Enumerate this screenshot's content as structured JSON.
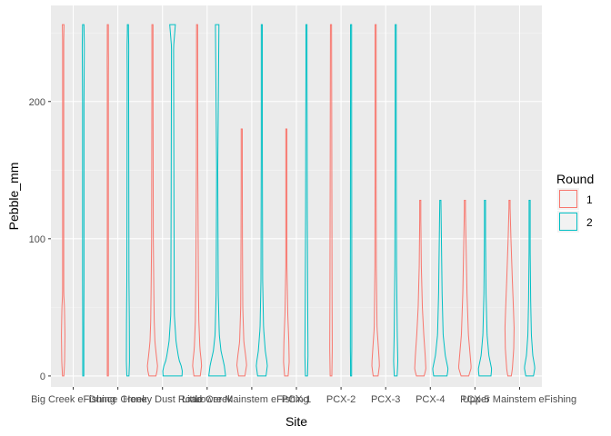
{
  "chart_data": {
    "type": "violin",
    "xlabel": "Site",
    "ylabel": "Pebble_mm",
    "categories": [
      "Big Creek eFishing",
      "Dunce Creek",
      "Honey Dust Road",
      "Little Creek",
      "Lower Mainstem eFishing",
      "PCX-1",
      "PCX-2",
      "PCX-3",
      "PCX-4",
      "PCX-5",
      "Upper Mainstem eFishing"
    ],
    "yticks": [
      0,
      100,
      200
    ],
    "ylim": [
      -8,
      270
    ],
    "grid": true,
    "legend": {
      "title": "Round",
      "position": "right",
      "entries": [
        {
          "label": "1",
          "color": "#F8766D"
        },
        {
          "label": "2",
          "color": "#00BFC4"
        }
      ]
    },
    "series": [
      {
        "name": "1",
        "color": "#F8766D",
        "violins": [
          {
            "cat": 0,
            "min": 0,
            "max": 256,
            "profile": [
              [
                0,
                0.1
              ],
              [
                10,
                0.2
              ],
              [
                30,
                0.25
              ],
              [
                50,
                0.18
              ],
              [
                60,
                0.08
              ],
              [
                240,
                0.06
              ],
              [
                256,
                0.12
              ]
            ]
          },
          {
            "cat": 1,
            "min": 0,
            "max": 256,
            "profile": [
              [
                0,
                0.05
              ],
              [
                70,
                0.05
              ],
              [
                90,
                0.08
              ],
              [
                200,
                0.06
              ],
              [
                230,
                0.09
              ],
              [
                256,
                0.05
              ]
            ]
          },
          {
            "cat": 2,
            "min": 0,
            "max": 256,
            "profile": [
              [
                0,
                0.5
              ],
              [
                6,
                0.75
              ],
              [
                15,
                0.55
              ],
              [
                25,
                0.35
              ],
              [
                40,
                0.25
              ],
              [
                60,
                0.2
              ],
              [
                100,
                0.12
              ],
              [
                256,
                0.06
              ]
            ]
          },
          {
            "cat": 3,
            "min": 0,
            "max": 256,
            "profile": [
              [
                0,
                0.45
              ],
              [
                8,
                0.65
              ],
              [
                20,
                0.4
              ],
              [
                40,
                0.25
              ],
              [
                70,
                0.18
              ],
              [
                150,
                0.1
              ],
              [
                256,
                0.08
              ]
            ]
          },
          {
            "cat": 4,
            "min": 0,
            "max": 180,
            "profile": [
              [
                0,
                0.45
              ],
              [
                8,
                0.7
              ],
              [
                15,
                0.55
              ],
              [
                25,
                0.3
              ],
              [
                50,
                0.15
              ],
              [
                100,
                0.1
              ],
              [
                180,
                0.06
              ]
            ]
          },
          {
            "cat": 5,
            "min": 0,
            "max": 180,
            "profile": [
              [
                0,
                0.25
              ],
              [
                10,
                0.4
              ],
              [
                25,
                0.35
              ],
              [
                45,
                0.2
              ],
              [
                80,
                0.08
              ],
              [
                180,
                0.03
              ]
            ]
          },
          {
            "cat": 6,
            "min": 0,
            "max": 256,
            "profile": [
              [
                0,
                0.12
              ],
              [
                20,
                0.18
              ],
              [
                60,
                0.15
              ],
              [
                140,
                0.12
              ],
              [
                256,
                0.08
              ]
            ]
          },
          {
            "cat": 7,
            "min": 0,
            "max": 256,
            "profile": [
              [
                0,
                0.35
              ],
              [
                8,
                0.55
              ],
              [
                20,
                0.4
              ],
              [
                35,
                0.2
              ],
              [
                80,
                0.1
              ],
              [
                256,
                0.04
              ]
            ]
          },
          {
            "cat": 8,
            "min": 0,
            "max": 128,
            "profile": [
              [
                0,
                0.55
              ],
              [
                5,
                0.8
              ],
              [
                15,
                0.7
              ],
              [
                30,
                0.5
              ],
              [
                50,
                0.3
              ],
              [
                80,
                0.15
              ],
              [
                128,
                0.05
              ]
            ]
          },
          {
            "cat": 9,
            "min": 0,
            "max": 128,
            "profile": [
              [
                0,
                0.55
              ],
              [
                6,
                0.9
              ],
              [
                15,
                0.75
              ],
              [
                30,
                0.5
              ],
              [
                60,
                0.3
              ],
              [
                100,
                0.15
              ],
              [
                128,
                0.05
              ]
            ]
          },
          {
            "cat": 10,
            "min": 0,
            "max": 128,
            "profile": [
              [
                0,
                0.25
              ],
              [
                5,
                0.4
              ],
              [
                20,
                0.6
              ],
              [
                35,
                0.65
              ],
              [
                50,
                0.55
              ],
              [
                70,
                0.4
              ],
              [
                100,
                0.2
              ],
              [
                128,
                0.05
              ]
            ]
          }
        ]
      },
      {
        "name": "2",
        "color": "#00BFC4",
        "violins": [
          {
            "cat": 0,
            "min": 0,
            "max": 256,
            "profile": [
              [
                0,
                0.06
              ],
              [
                40,
                0.08
              ],
              [
                70,
                0.1
              ],
              [
                200,
                0.1
              ],
              [
                240,
                0.15
              ],
              [
                256,
                0.1
              ]
            ]
          },
          {
            "cat": 1,
            "min": 0,
            "max": 256,
            "profile": [
              [
                0,
                0.15
              ],
              [
                10,
                0.22
              ],
              [
                40,
                0.2
              ],
              [
                70,
                0.15
              ],
              [
                220,
                0.1
              ],
              [
                240,
                0.12
              ],
              [
                256,
                0.06
              ]
            ]
          },
          {
            "cat": 2,
            "min": 0,
            "max": 256,
            "profile": [
              [
                0,
                1.35
              ],
              [
                5,
                1.4
              ],
              [
                12,
                0.9
              ],
              [
                25,
                0.5
              ],
              [
                45,
                0.25
              ],
              [
                130,
                0.2
              ],
              [
                240,
                0.15
              ],
              [
                256,
                0.4
              ]
            ]
          },
          {
            "cat": 3,
            "min": 0,
            "max": 256,
            "profile": [
              [
                0,
                1.2
              ],
              [
                8,
                1.0
              ],
              [
                18,
                0.55
              ],
              [
                30,
                0.3
              ],
              [
                60,
                0.15
              ],
              [
                150,
                0.08
              ],
              [
                256,
                0.25
              ]
            ]
          },
          {
            "cat": 4,
            "min": 0,
            "max": 256,
            "profile": [
              [
                0,
                0.6
              ],
              [
                8,
                0.8
              ],
              [
                18,
                0.5
              ],
              [
                35,
                0.25
              ],
              [
                70,
                0.12
              ],
              [
                160,
                0.08
              ],
              [
                256,
                0.06
              ]
            ]
          },
          {
            "cat": 5,
            "min": 0,
            "max": 256,
            "profile": [
              [
                0,
                0.15
              ],
              [
                15,
                0.22
              ],
              [
                50,
                0.18
              ],
              [
                120,
                0.12
              ],
              [
                180,
                0.1
              ],
              [
                256,
                0.06
              ]
            ]
          },
          {
            "cat": 6,
            "min": 0,
            "max": 256,
            "profile": [
              [
                0,
                0.06
              ],
              [
                20,
                0.1
              ],
              [
                80,
                0.1
              ],
              [
                200,
                0.08
              ],
              [
                256,
                0.05
              ]
            ]
          },
          {
            "cat": 7,
            "min": 0,
            "max": 256,
            "profile": [
              [
                0,
                0.2
              ],
              [
                10,
                0.3
              ],
              [
                30,
                0.22
              ],
              [
                80,
                0.12
              ],
              [
                160,
                0.08
              ],
              [
                256,
                0.04
              ]
            ]
          },
          {
            "cat": 8,
            "min": 0,
            "max": 128,
            "profile": [
              [
                0,
                0.95
              ],
              [
                5,
                1.1
              ],
              [
                15,
                0.7
              ],
              [
                30,
                0.4
              ],
              [
                60,
                0.25
              ],
              [
                100,
                0.15
              ],
              [
                128,
                0.08
              ]
            ]
          },
          {
            "cat": 9,
            "min": 0,
            "max": 128,
            "profile": [
              [
                0,
                0.85
              ],
              [
                5,
                0.95
              ],
              [
                15,
                0.55
              ],
              [
                30,
                0.3
              ],
              [
                60,
                0.15
              ],
              [
                100,
                0.08
              ],
              [
                128,
                0.05
              ]
            ]
          },
          {
            "cat": 10,
            "min": 0,
            "max": 128,
            "profile": [
              [
                0,
                0.55
              ],
              [
                6,
                0.75
              ],
              [
                15,
                0.45
              ],
              [
                30,
                0.25
              ],
              [
                55,
                0.15
              ],
              [
                90,
                0.08
              ],
              [
                128,
                0.04
              ]
            ]
          }
        ]
      }
    ]
  }
}
